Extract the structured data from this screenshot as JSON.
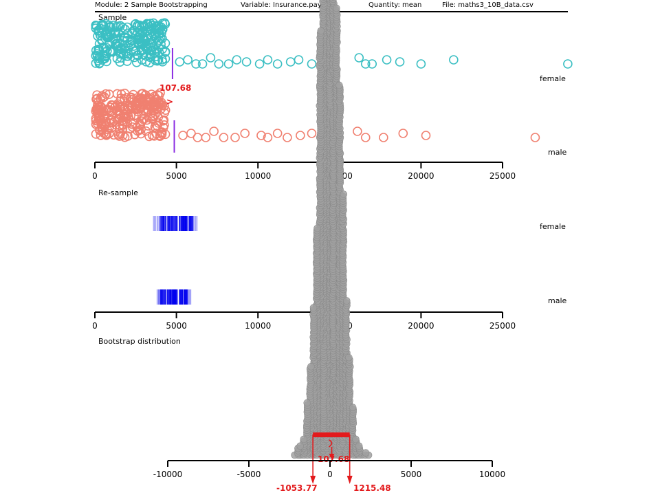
{
  "header": {
    "module": "Module: 2 Sample Bootstrapping",
    "variable": "Variable: Insurance.payout",
    "quantity": "Quantity: mean",
    "file": "File: maths3_10B_data.csv"
  },
  "colors": {
    "female": "#3bbfc3",
    "male": "#f08070",
    "mean_line": "#8a2be2",
    "resample": "#0000ee",
    "bootstrap": "#a0a0a0",
    "annotation": "#e31a1c"
  },
  "chart_data": [
    {
      "type": "scatter",
      "title": "Sample",
      "groups": [
        "female",
        "male"
      ],
      "xlim": [
        0,
        25000
      ],
      "ticks": [
        0,
        5000,
        10000,
        15000,
        20000,
        25000
      ],
      "means": {
        "female": 4760,
        "male": 4870
      },
      "difference_label": "107.68",
      "difference_symbol": ">",
      "female_outliers": [
        5200,
        5700,
        6200,
        6600,
        7100,
        7600,
        8200,
        8700,
        9300,
        10100,
        10600,
        11200,
        12000,
        12500,
        13300,
        14000,
        16200,
        16600,
        17000,
        17900,
        18700,
        20000,
        22000,
        29000
      ],
      "male_outliers": [
        5400,
        5900,
        6300,
        6800,
        7300,
        7900,
        8600,
        9200,
        10200,
        10600,
        11200,
        11800,
        12600,
        13300,
        13900,
        14600,
        16100,
        16600,
        17700,
        18900,
        20300,
        27000
      ]
    },
    {
      "type": "scatter",
      "title": "Re-sample",
      "groups": [
        "female",
        "male"
      ],
      "xlim": [
        0,
        25000
      ],
      "ticks": [
        0,
        5000,
        10000,
        15000,
        20000,
        25000
      ],
      "ranges": {
        "female": [
          3600,
          6300
        ],
        "male": [
          3800,
          5900
        ]
      }
    },
    {
      "type": "scatter",
      "title": "Bootstrap distribution",
      "xlim": [
        -10000,
        10000
      ],
      "ticks": [
        -10000,
        -5000,
        0,
        5000,
        10000
      ],
      "observed_difference": "107.68",
      "observed_value": 107.68,
      "ci_lower_label": "-1053.77",
      "ci_upper_label": "1215.48",
      "ci": [
        -1053.77,
        1215.48
      ]
    }
  ]
}
